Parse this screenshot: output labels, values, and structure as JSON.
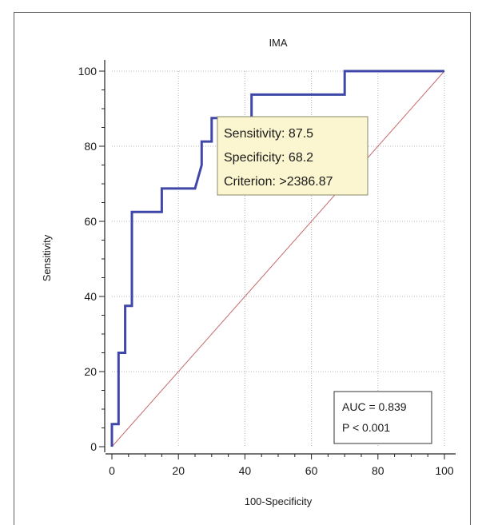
{
  "chart_data": {
    "type": "line",
    "title": "IMA",
    "xlabel": "100-Specificity",
    "ylabel": "Sensitivity",
    "xlim": [
      0,
      100
    ],
    "ylim": [
      0,
      100
    ],
    "xticks": [
      "0",
      "20",
      "40",
      "60",
      "80",
      "100"
    ],
    "yticks": [
      "0",
      "20",
      "40",
      "60",
      "80",
      "100"
    ],
    "grid": true,
    "series": [
      {
        "color": "#3f48a8",
        "x": [
          0,
          0,
          2,
          2,
          4,
          4,
          6,
          6,
          15,
          15,
          25,
          27,
          27,
          30,
          30,
          42,
          42,
          70,
          70,
          100
        ],
        "y": [
          0,
          6,
          6,
          25,
          25,
          37.5,
          37.5,
          62.5,
          62.5,
          68.75,
          68.75,
          75,
          81.25,
          81.25,
          87.5,
          87.5,
          93.75,
          93.75,
          100,
          100
        ]
      }
    ],
    "reference_line": {
      "x": [
        0,
        100
      ],
      "y": [
        0,
        100
      ],
      "color": "#c46a6a"
    },
    "tooltip": {
      "lines": [
        "Sensitivity: 87.5",
        "Specificity: 68.2",
        "Criterion: >2386.87"
      ],
      "background": "#fbf6cf"
    },
    "stats_box": {
      "lines": [
        "AUC = 0.839",
        "P < 0.001"
      ],
      "position": "bottom-right"
    }
  }
}
